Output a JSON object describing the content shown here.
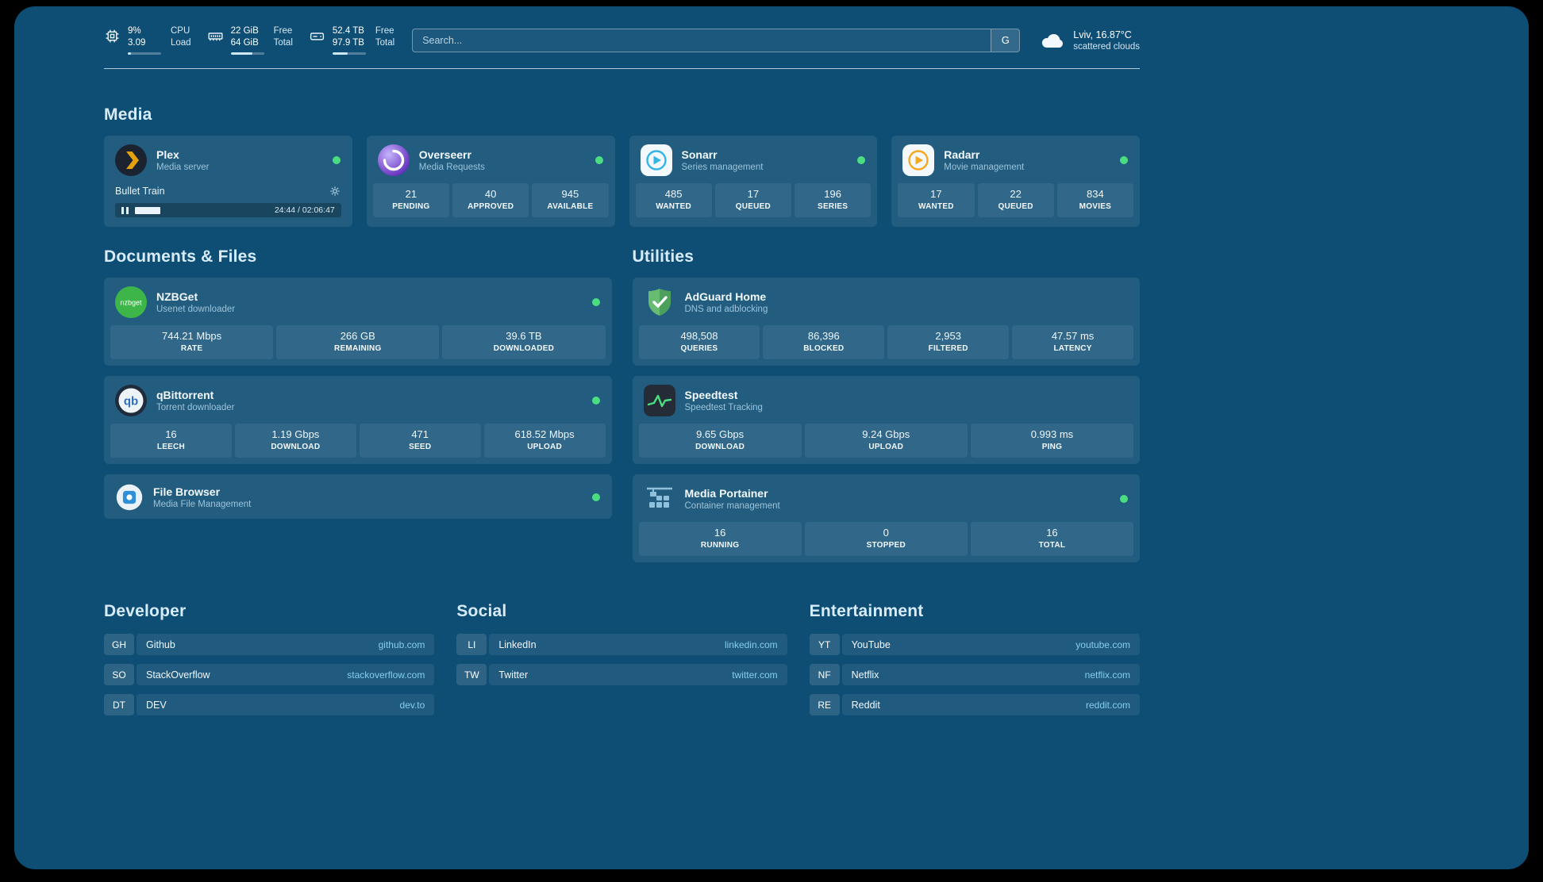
{
  "topbar": {
    "cpu": {
      "icon": "cpu-icon",
      "value": "9%",
      "sub": "3.09",
      "label_top": "CPU",
      "label_bottom": "Load",
      "progress": 9
    },
    "memory": {
      "icon": "memory-icon",
      "value": "22 GiB",
      "sub": "64 GiB",
      "label_top": "Free",
      "label_bottom": "Total",
      "progress": 66
    },
    "disk": {
      "icon": "disk-icon",
      "value": "52.4 TB",
      "sub": "97.9 TB",
      "label_top": "Free",
      "label_bottom": "Total",
      "progress": 46
    },
    "search": {
      "placeholder": "Search...",
      "engine_label": "G"
    },
    "weather": {
      "icon": "cloud-icon",
      "location": "Lviv, 16.87°C",
      "condition": "scattered clouds"
    }
  },
  "media": {
    "heading": "Media",
    "plex": {
      "icon": "plex-icon",
      "title": "Plex",
      "subtitle": "Media server",
      "now_playing": "Bullet Train",
      "time": "24:44 / 02:06:47",
      "progress": 19.6
    },
    "overseerr": {
      "icon": "overseerr-icon",
      "title": "Overseerr",
      "subtitle": "Media Requests",
      "stats": [
        {
          "value": "21",
          "label": "PENDING"
        },
        {
          "value": "40",
          "label": "APPROVED"
        },
        {
          "value": "945",
          "label": "AVAILABLE"
        }
      ]
    },
    "sonarr": {
      "icon": "sonarr-icon",
      "title": "Sonarr",
      "subtitle": "Series management",
      "stats": [
        {
          "value": "485",
          "label": "WANTED"
        },
        {
          "value": "17",
          "label": "QUEUED"
        },
        {
          "value": "196",
          "label": "SERIES"
        }
      ]
    },
    "radarr": {
      "icon": "radarr-icon",
      "title": "Radarr",
      "subtitle": "Movie management",
      "stats": [
        {
          "value": "17",
          "label": "WANTED"
        },
        {
          "value": "22",
          "label": "QUEUED"
        },
        {
          "value": "834",
          "label": "MOVIES"
        }
      ]
    }
  },
  "documents": {
    "heading": "Documents & Files",
    "nzbget": {
      "icon": "nzbget-icon",
      "title": "NZBGet",
      "subtitle": "Usenet downloader",
      "stats": [
        {
          "value": "744.21 Mbps",
          "label": "RATE"
        },
        {
          "value": "266 GB",
          "label": "REMAINING"
        },
        {
          "value": "39.6 TB",
          "label": "DOWNLOADED"
        }
      ]
    },
    "qbittorrent": {
      "icon": "qbittorrent-icon",
      "title": "qBittorrent",
      "subtitle": "Torrent downloader",
      "stats": [
        {
          "value": "16",
          "label": "LEECH"
        },
        {
          "value": "1.19 Gbps",
          "label": "DOWNLOAD"
        },
        {
          "value": "471",
          "label": "SEED"
        },
        {
          "value": "618.52 Mbps",
          "label": "UPLOAD"
        }
      ]
    },
    "filebrowser": {
      "icon": "filebrowser-icon",
      "title": "File Browser",
      "subtitle": "Media File Management"
    }
  },
  "utilities": {
    "heading": "Utilities",
    "adguard": {
      "icon": "adguard-icon",
      "title": "AdGuard Home",
      "subtitle": "DNS and adblocking",
      "stats": [
        {
          "value": "498,508",
          "label": "QUERIES"
        },
        {
          "value": "86,396",
          "label": "BLOCKED"
        },
        {
          "value": "2,953",
          "label": "FILTERED"
        },
        {
          "value": "47.57 ms",
          "label": "LATENCY"
        }
      ]
    },
    "speedtest": {
      "icon": "speedtest-icon",
      "title": "Speedtest",
      "subtitle": "Speedtest Tracking",
      "stats": [
        {
          "value": "9.65 Gbps",
          "label": "DOWNLOAD"
        },
        {
          "value": "9.24 Gbps",
          "label": "UPLOAD"
        },
        {
          "value": "0.993 ms",
          "label": "PING"
        }
      ]
    },
    "portainer": {
      "icon": "portainer-icon",
      "title": "Media Portainer",
      "subtitle": "Container management",
      "stats": [
        {
          "value": "16",
          "label": "RUNNING"
        },
        {
          "value": "0",
          "label": "STOPPED"
        },
        {
          "value": "16",
          "label": "TOTAL"
        }
      ]
    }
  },
  "bookmarks": {
    "developer": {
      "heading": "Developer",
      "items": [
        {
          "abbr": "GH",
          "name": "Github",
          "domain": "github.com"
        },
        {
          "abbr": "SO",
          "name": "StackOverflow",
          "domain": "stackoverflow.com"
        },
        {
          "abbr": "DT",
          "name": "DEV",
          "domain": "dev.to"
        }
      ]
    },
    "social": {
      "heading": "Social",
      "items": [
        {
          "abbr": "LI",
          "name": "LinkedIn",
          "domain": "linkedin.com"
        },
        {
          "abbr": "TW",
          "name": "Twitter",
          "domain": "twitter.com"
        }
      ]
    },
    "entertainment": {
      "heading": "Entertainment",
      "items": [
        {
          "abbr": "YT",
          "name": "YouTube",
          "domain": "youtube.com"
        },
        {
          "abbr": "NF",
          "name": "Netflix",
          "domain": "netflix.com"
        },
        {
          "abbr": "RE",
          "name": "Reddit",
          "domain": "reddit.com"
        }
      ]
    }
  },
  "theme": {
    "background": "#0e4e75",
    "status_online": "#4ade80",
    "accent_text": "#85cdf0"
  }
}
